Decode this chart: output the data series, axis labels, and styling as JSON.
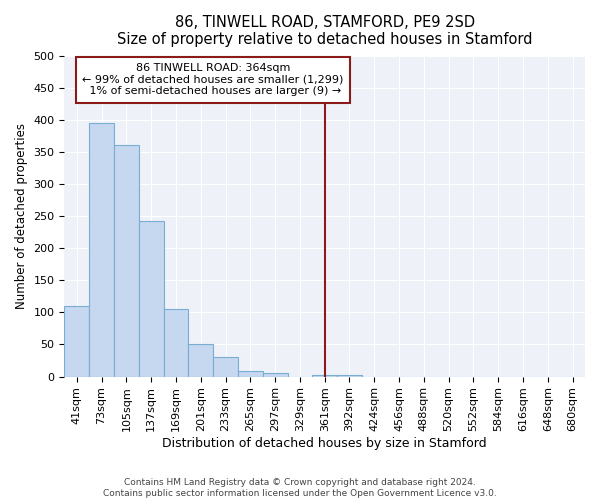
{
  "title": "86, TINWELL ROAD, STAMFORD, PE9 2SD",
  "subtitle": "Size of property relative to detached houses in Stamford",
  "xlabel": "Distribution of detached houses by size in Stamford",
  "ylabel": "Number of detached properties",
  "categories": [
    "41sqm",
    "73sqm",
    "105sqm",
    "137sqm",
    "169sqm",
    "201sqm",
    "233sqm",
    "265sqm",
    "297sqm",
    "329sqm",
    "361sqm",
    "392sqm",
    "424sqm",
    "456sqm",
    "488sqm",
    "520sqm",
    "552sqm",
    "584sqm",
    "616sqm",
    "648sqm",
    "680sqm"
  ],
  "values": [
    110,
    395,
    360,
    242,
    105,
    50,
    30,
    8,
    5,
    0,
    2,
    2,
    0,
    0,
    0,
    0,
    0,
    0,
    0,
    0,
    0
  ],
  "bar_color": "#c5d8ef",
  "bar_edge_color": "#7aadd4",
  "highlight_color": "#8b1a1a",
  "annotation_text": "86 TINWELL ROAD: 364sqm\n← 99% of detached houses are smaller (1,299)\n 1% of semi-detached houses are larger (9) →",
  "annotation_box_color": "#ffffff",
  "annotation_box_edge_color": "#8b1a1a",
  "ylim": [
    0,
    500
  ],
  "yticks": [
    0,
    50,
    100,
    150,
    200,
    250,
    300,
    350,
    400,
    450,
    500
  ],
  "footer": "Contains HM Land Registry data © Crown copyright and database right 2024.\nContains public sector information licensed under the Open Government Licence v3.0.",
  "title_fontsize": 10.5,
  "subtitle_fontsize": 9.5,
  "xlabel_fontsize": 9,
  "ylabel_fontsize": 8.5,
  "tick_fontsize": 8,
  "footer_fontsize": 6.5,
  "bg_color": "#eef2f8"
}
